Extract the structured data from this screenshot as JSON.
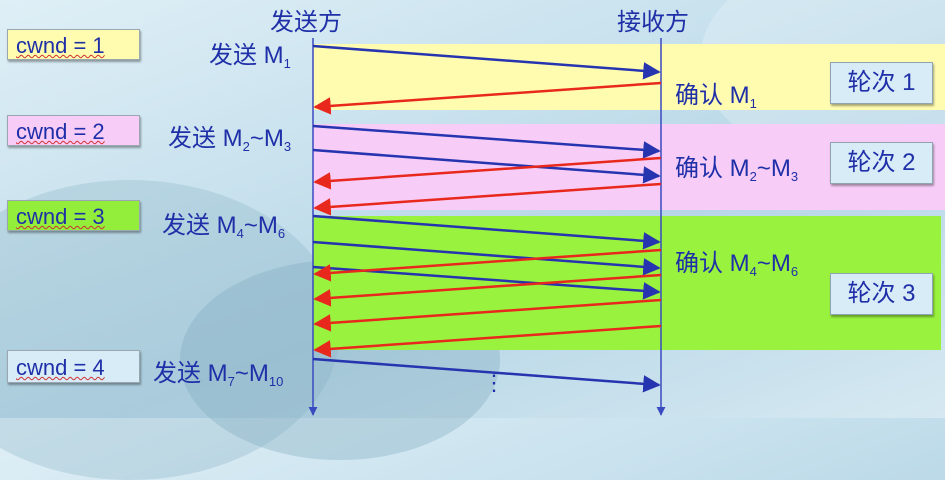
{
  "headers": {
    "sender": "发送方",
    "receiver": "接收方"
  },
  "cwnd": [
    "cwnd = 1",
    "cwnd = 2",
    "cwnd = 3",
    "cwnd = 4"
  ],
  "send_labels": [
    {
      "verb": "发送",
      "m": "M",
      "s1": "1",
      "tilde": "",
      "m2": "",
      "s2": ""
    },
    {
      "verb": "发送",
      "m": "M",
      "s1": "2",
      "tilde": "~",
      "m2": "M",
      "s2": "3"
    },
    {
      "verb": "发送",
      "m": "M",
      "s1": "4",
      "tilde": "~",
      "m2": "M",
      "s2": "6"
    },
    {
      "verb": "发送",
      "m": "M",
      "s1": "7",
      "tilde": "~",
      "m2": "M",
      "s2": "10"
    }
  ],
  "ack_labels": [
    {
      "verb": "确认",
      "m": "M",
      "s1": "1",
      "tilde": "",
      "m2": "",
      "s2": ""
    },
    {
      "verb": "确认",
      "m": "M",
      "s1": "2",
      "tilde": "~",
      "m2": "M",
      "s2": "3"
    },
    {
      "verb": "确认",
      "m": "M",
      "s1": "4",
      "tilde": "~",
      "m2": "M",
      "s2": "6"
    }
  ],
  "rounds": [
    "轮次 1",
    "轮次 2",
    "轮次 3"
  ],
  "ellipsis": "⋮",
  "colors": {
    "round1": "#fffcb0",
    "round2": "#f7cdf7",
    "round3": "#99f23e",
    "cwnd1": "#fffcb0",
    "cwnd2": "#f7cdf7",
    "cwnd3": "#92ee3a",
    "cwnd4": "#d8ecf8",
    "data_arrow": "#2634b0",
    "ack_arrow": "#e8281c",
    "timeline": "#3a4ac0"
  }
}
